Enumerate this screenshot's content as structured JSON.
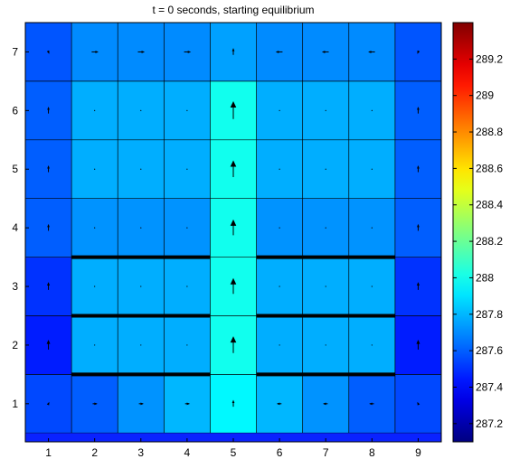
{
  "chart_data": {
    "type": "heatmap",
    "title": "t = 0 seconds, starting equilibrium",
    "x": [
      1,
      2,
      3,
      4,
      5,
      6,
      7,
      8,
      9
    ],
    "y": [
      1,
      2,
      3,
      4,
      5,
      6,
      7
    ],
    "x_tick_labels": [
      "1",
      "2",
      "3",
      "4",
      "5",
      "6",
      "7",
      "8",
      "9"
    ],
    "y_tick_labels": [
      "1",
      "2",
      "3",
      "4",
      "5",
      "6",
      "7"
    ],
    "values": [
      [
        287.55,
        287.6,
        287.72,
        287.8,
        287.95,
        287.8,
        287.72,
        287.6,
        287.55
      ],
      [
        287.45,
        287.78,
        287.78,
        287.78,
        288.0,
        287.78,
        287.78,
        287.78,
        287.45
      ],
      [
        287.5,
        287.78,
        287.78,
        287.78,
        288.0,
        287.78,
        287.78,
        287.78,
        287.5
      ],
      [
        287.6,
        287.72,
        287.72,
        287.72,
        288.0,
        287.72,
        287.72,
        287.72,
        287.6
      ],
      [
        287.6,
        287.78,
        287.78,
        287.78,
        288.0,
        287.78,
        287.78,
        287.78,
        287.6
      ],
      [
        287.6,
        287.78,
        287.78,
        287.78,
        288.0,
        287.78,
        287.78,
        287.78,
        287.6
      ],
      [
        287.58,
        287.7,
        287.7,
        287.7,
        287.75,
        287.7,
        287.7,
        287.7,
        287.58
      ]
    ],
    "vectors": [
      [
        [
          0.05,
          0.1
        ],
        [
          0.2,
          0.0
        ],
        [
          0.2,
          0.0
        ],
        [
          0.2,
          0.0
        ],
        [
          0.0,
          0.3
        ],
        [
          -0.2,
          0.0
        ],
        [
          -0.2,
          0.0
        ],
        [
          -0.2,
          0.0
        ],
        [
          -0.05,
          0.1
        ]
      ],
      [
        [
          0.0,
          0.45
        ],
        [
          0.0,
          0.0
        ],
        [
          0.0,
          0.0
        ],
        [
          0.0,
          0.0
        ],
        [
          0.0,
          0.8
        ],
        [
          0.0,
          0.0
        ],
        [
          0.0,
          0.0
        ],
        [
          0.0,
          0.0
        ],
        [
          0.0,
          0.45
        ]
      ],
      [
        [
          0.0,
          0.35
        ],
        [
          0.0,
          0.0
        ],
        [
          0.0,
          0.0
        ],
        [
          0.0,
          0.0
        ],
        [
          0.0,
          0.75
        ],
        [
          0.0,
          0.0
        ],
        [
          0.0,
          0.0
        ],
        [
          0.0,
          0.0
        ],
        [
          0.0,
          0.35
        ]
      ],
      [
        [
          0.0,
          0.3
        ],
        [
          0.0,
          0.0
        ],
        [
          0.0,
          0.0
        ],
        [
          0.0,
          0.0
        ],
        [
          0.0,
          0.75
        ],
        [
          0.0,
          0.0
        ],
        [
          0.0,
          0.0
        ],
        [
          0.0,
          0.0
        ],
        [
          0.0,
          0.3
        ]
      ],
      [
        [
          0.0,
          0.3
        ],
        [
          0.0,
          0.0
        ],
        [
          0.0,
          0.0
        ],
        [
          0.0,
          0.0
        ],
        [
          0.0,
          0.8
        ],
        [
          0.0,
          0.0
        ],
        [
          0.0,
          0.0
        ],
        [
          0.0,
          0.0
        ],
        [
          0.0,
          0.3
        ]
      ],
      [
        [
          0.0,
          0.3
        ],
        [
          0.0,
          0.0
        ],
        [
          0.0,
          0.0
        ],
        [
          0.0,
          0.0
        ],
        [
          0.0,
          0.85
        ],
        [
          0.0,
          0.0
        ],
        [
          0.0,
          0.0
        ],
        [
          0.0,
          0.0
        ],
        [
          0.0,
          0.3
        ]
      ],
      [
        [
          0.05,
          -0.12
        ],
        [
          0.3,
          0.0
        ],
        [
          0.3,
          0.0
        ],
        [
          0.3,
          0.0
        ],
        [
          0.0,
          0.3
        ],
        [
          -0.3,
          0.0
        ],
        [
          -0.3,
          0.0
        ],
        [
          -0.3,
          0.0
        ],
        [
          -0.05,
          -0.12
        ]
      ]
    ],
    "walls": [
      {
        "y": 1.5,
        "x_from": 1.5,
        "x_to": 4.5
      },
      {
        "y": 1.5,
        "x_from": 5.5,
        "x_to": 8.5
      },
      {
        "y": 2.5,
        "x_from": 1.5,
        "x_to": 4.5
      },
      {
        "y": 2.5,
        "x_from": 5.5,
        "x_to": 8.5
      },
      {
        "y": 3.5,
        "x_from": 1.5,
        "x_to": 4.5
      },
      {
        "y": 3.5,
        "x_from": 5.5,
        "x_to": 8.5
      }
    ],
    "xlim": [
      0.5,
      9.5
    ],
    "ylim": [
      0.35,
      7.5
    ],
    "colorbar": {
      "colormap": "jet",
      "range": [
        287.1,
        289.4
      ],
      "ticks": [
        287.2,
        287.4,
        287.6,
        287.8,
        288,
        288.2,
        288.4,
        288.6,
        288.8,
        289,
        289.2
      ],
      "tick_labels": [
        "287.2",
        "287.4",
        "287.6",
        "287.8",
        "288",
        "288.2",
        "288.4",
        "288.6",
        "288.8",
        "289",
        "289.2"
      ]
    },
    "grid": true,
    "legend": "none"
  }
}
